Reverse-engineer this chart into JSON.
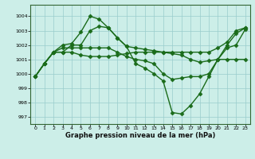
{
  "xlabel": "Graphe pression niveau de la mer (hPa)",
  "bg_color": "#cceee8",
  "grid_color": "#99cccc",
  "line_color": "#1a6b1a",
  "marker": "D",
  "marker_size": 2.5,
  "linewidth": 1.0,
  "ylim": [
    996.5,
    1004.8
  ],
  "xlim": [
    -0.5,
    23.5
  ],
  "yticks": [
    997,
    998,
    999,
    1000,
    1001,
    1002,
    1003,
    1004
  ],
  "xticks": [
    0,
    1,
    2,
    3,
    4,
    5,
    6,
    7,
    8,
    9,
    10,
    11,
    12,
    13,
    14,
    15,
    16,
    17,
    18,
    19,
    20,
    21,
    22,
    23
  ],
  "series": [
    [
      999.8,
      1000.7,
      1001.5,
      1002.0,
      1002.1,
      1002.9,
      1004.0,
      1003.8,
      1003.2,
      1002.5,
      1001.9,
      1000.7,
      1000.4,
      1000.0,
      999.5,
      997.3,
      997.2,
      997.8,
      998.6,
      999.8,
      1001.0,
      1002.0,
      1002.8,
      1003.2
    ],
    [
      999.8,
      1000.7,
      1001.5,
      1001.8,
      1001.8,
      1001.8,
      1001.8,
      1001.8,
      1001.8,
      1001.5,
      1001.2,
      1001.0,
      1000.9,
      1000.7,
      1000.0,
      999.6,
      999.7,
      999.8,
      999.8,
      1000.0,
      1001.0,
      1001.8,
      1002.0,
      1003.1
    ],
    [
      999.8,
      1000.7,
      1001.5,
      1001.5,
      1002.0,
      1002.0,
      1003.0,
      1003.3,
      1003.2,
      1002.5,
      1001.9,
      1001.8,
      1001.7,
      1001.6,
      1001.5,
      1001.5,
      1001.5,
      1001.5,
      1001.5,
      1001.5,
      1001.8,
      1002.2,
      1003.0,
      1003.2
    ],
    [
      999.8,
      1000.7,
      1001.5,
      1001.5,
      1001.5,
      1001.3,
      1001.2,
      1001.2,
      1001.2,
      1001.3,
      1001.4,
      1001.5,
      1001.5,
      1001.5,
      1001.5,
      1001.4,
      1001.3,
      1001.0,
      1000.8,
      1000.9,
      1001.0,
      1001.0,
      1001.0,
      1001.0
    ]
  ]
}
